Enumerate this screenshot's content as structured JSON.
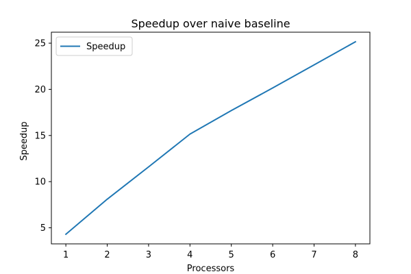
{
  "chart_data": {
    "type": "line",
    "title": "Speedup over naive baseline",
    "xlabel": "Processors",
    "ylabel": "Speedup",
    "x": [
      1,
      2,
      3,
      4,
      5,
      6,
      7,
      8
    ],
    "series": [
      {
        "name": "Speedup",
        "color": "#1f77b4",
        "values": [
          4.3,
          8.1,
          11.6,
          15.15,
          17.7,
          20.15,
          22.65,
          25.15
        ]
      }
    ],
    "xlim": [
      0.65,
      8.35
    ],
    "ylim": [
      3.26,
      26.19
    ],
    "xticks": [
      1,
      2,
      3,
      4,
      5,
      6,
      7,
      8
    ],
    "yticks": [
      5,
      10,
      15,
      20,
      25
    ],
    "grid": false,
    "legend": "top-left"
  }
}
